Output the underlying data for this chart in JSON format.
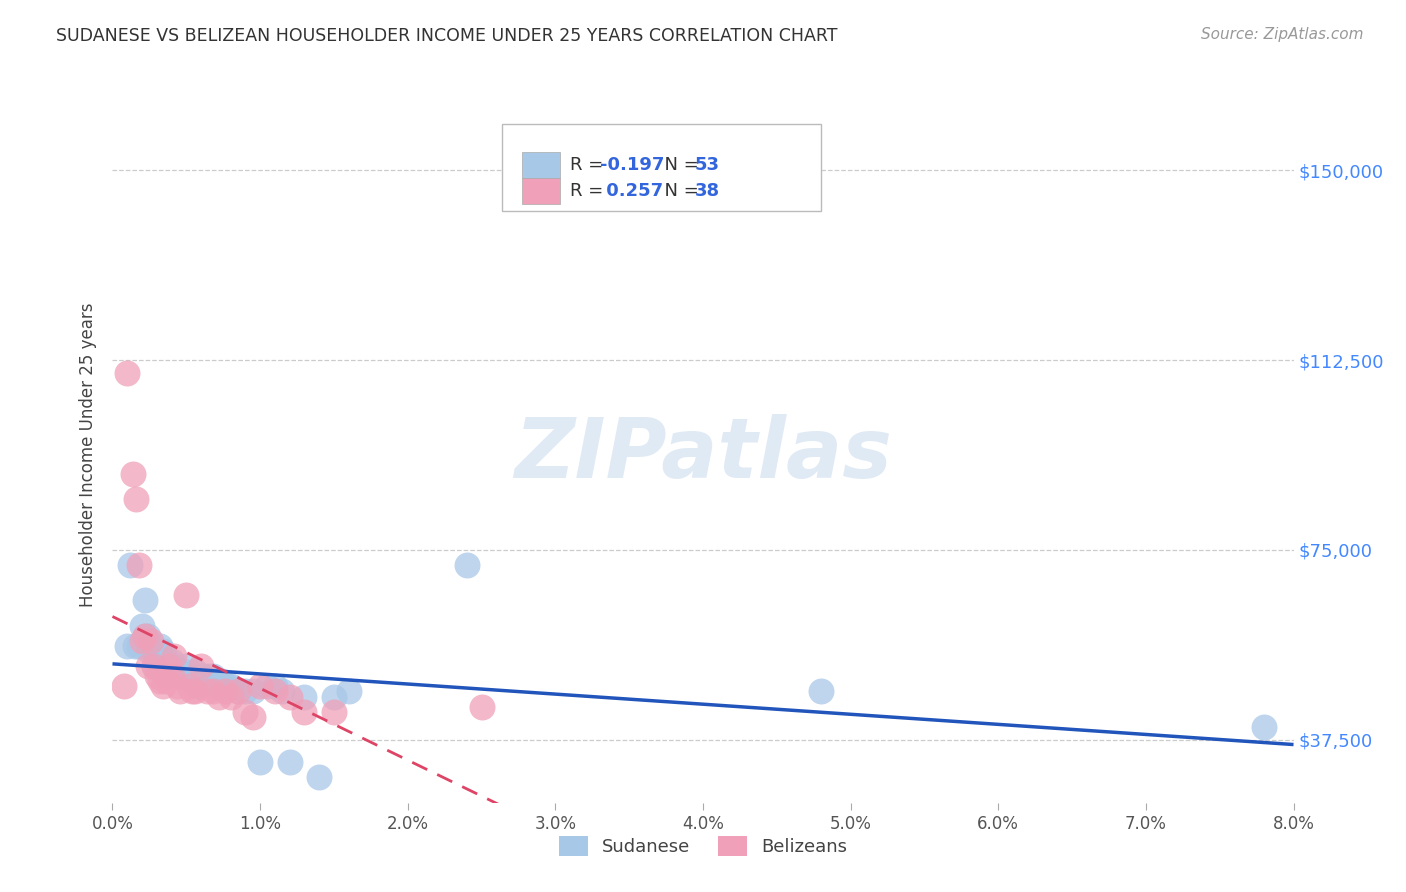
{
  "title": "SUDANESE VS BELIZEAN HOUSEHOLDER INCOME UNDER 25 YEARS CORRELATION CHART",
  "source": "Source: ZipAtlas.com",
  "ylabel": "Householder Income Under 25 years",
  "xmin": 0.0,
  "xmax": 8.0,
  "ymin": 25000,
  "ymax": 162500,
  "yticks": [
    37500,
    75000,
    112500,
    150000
  ],
  "ytick_labels": [
    "$37,500",
    "$75,000",
    "$112,500",
    "$150,000"
  ],
  "sudanese_R": -0.197,
  "sudanese_N": 53,
  "belizean_R": 0.257,
  "belizean_N": 38,
  "sudanese_color": "#a8c8e8",
  "belizean_color": "#f0a0b8",
  "sudanese_line_color": "#2255bb",
  "belizean_line_color": "#dd4466",
  "watermark": "ZIPatlas",
  "background_color": "#ffffff",
  "grid_color": "#cccccc",
  "legend_label_sudanese": "Sudanese",
  "legend_label_belizeans": "Belizeans",
  "sudanese_x": [
    0.1,
    0.12,
    0.15,
    0.18,
    0.2,
    0.22,
    0.22,
    0.24,
    0.25,
    0.26,
    0.28,
    0.3,
    0.32,
    0.34,
    0.35,
    0.36,
    0.38,
    0.4,
    0.42,
    0.44,
    0.46,
    0.48,
    0.5,
    0.52,
    0.54,
    0.56,
    0.58,
    0.6,
    0.62,
    0.64,
    0.66,
    0.68,
    0.7,
    0.72,
    0.74,
    0.76,
    0.78,
    0.8,
    0.85,
    0.9,
    0.95,
    1.0,
    1.05,
    1.1,
    1.15,
    1.2,
    1.3,
    1.4,
    1.5,
    1.6,
    2.4,
    4.8,
    7.8
  ],
  "sudanese_y": [
    56000,
    72000,
    56000,
    56000,
    60000,
    65000,
    58000,
    58000,
    55000,
    56000,
    52000,
    54000,
    56000,
    55000,
    54000,
    50000,
    52000,
    53000,
    52000,
    51000,
    50000,
    51000,
    52000,
    50000,
    49000,
    51000,
    48000,
    50000,
    50000,
    49000,
    50000,
    50000,
    49000,
    48000,
    49000,
    48000,
    48000,
    48000,
    47000,
    47000,
    47000,
    33000,
    48000,
    48000,
    47000,
    33000,
    46000,
    30000,
    46000,
    47000,
    72000,
    47000,
    40000
  ],
  "belizean_x": [
    0.08,
    0.1,
    0.14,
    0.16,
    0.18,
    0.2,
    0.22,
    0.24,
    0.26,
    0.28,
    0.3,
    0.32,
    0.34,
    0.36,
    0.38,
    0.4,
    0.42,
    0.44,
    0.46,
    0.5,
    0.52,
    0.54,
    0.56,
    0.6,
    0.64,
    0.68,
    0.72,
    0.76,
    0.8,
    0.85,
    0.9,
    0.95,
    1.0,
    1.1,
    1.2,
    1.3,
    1.5,
    2.5
  ],
  "belizean_y": [
    48000,
    110000,
    90000,
    85000,
    72000,
    57000,
    58000,
    52000,
    57000,
    52000,
    50000,
    49000,
    48000,
    49000,
    52000,
    50000,
    54000,
    48000,
    47000,
    66000,
    48000,
    47000,
    47000,
    52000,
    47000,
    47000,
    46000,
    47000,
    46000,
    47000,
    43000,
    42000,
    48000,
    47000,
    46000,
    43000,
    43000,
    44000
  ]
}
